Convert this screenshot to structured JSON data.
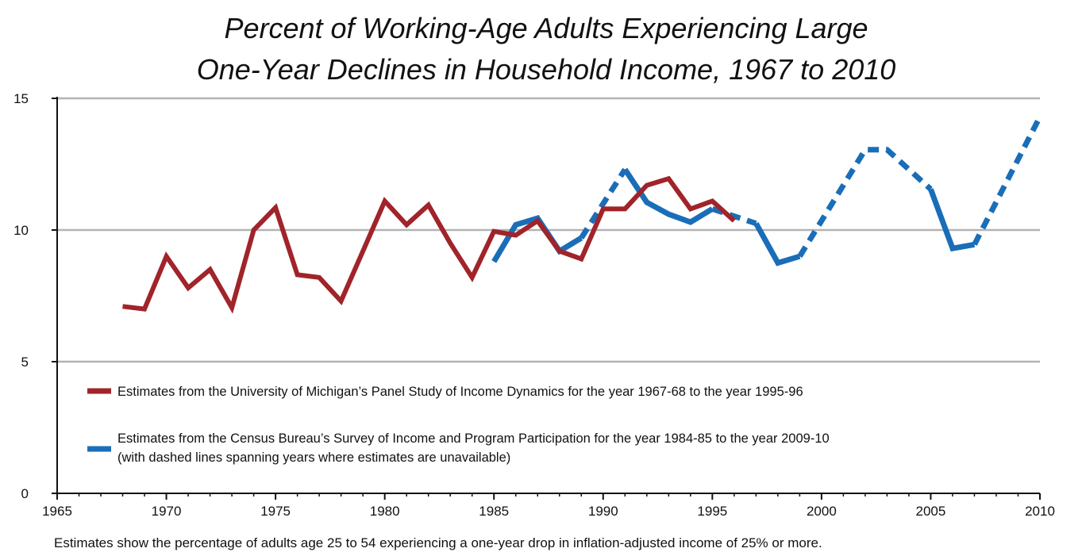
{
  "chart_data": {
    "type": "line",
    "title_lines": [
      "Percent of Working-Age Adults Experiencing Large",
      "One-Year Declines in Household Income, 1967 to 2010"
    ],
    "xlabel": "",
    "ylabel": "",
    "xlim": [
      1965,
      2010
    ],
    "ylim": [
      0,
      15
    ],
    "x_ticks": [
      "1965",
      "1970",
      "1975",
      "1980",
      "1985",
      "1990",
      "1995",
      "2000",
      "2005",
      "2010"
    ],
    "y_ticks": [
      "0",
      "5",
      "10",
      "15"
    ],
    "grid": "horizontal",
    "legend_position": "lower-left",
    "series": [
      {
        "name": "Estimates from the University of Michigan’s Panel Study of Income Dynamics for the year 1967-68 to the year 1995-96",
        "color": "#a0242a",
        "style": "solid",
        "points": [
          [
            1968,
            7.1
          ],
          [
            1969,
            7.0
          ],
          [
            1970,
            9.0
          ],
          [
            1971,
            7.8
          ],
          [
            1972,
            8.5
          ],
          [
            1973,
            7.05
          ],
          [
            1974,
            10.0
          ],
          [
            1975,
            10.85
          ],
          [
            1976,
            8.3
          ],
          [
            1977,
            8.2
          ],
          [
            1978,
            7.3
          ],
          [
            1979,
            9.2
          ],
          [
            1980,
            11.1
          ],
          [
            1981,
            10.2
          ],
          [
            1982,
            10.95
          ],
          [
            1983,
            9.5
          ],
          [
            1984,
            8.2
          ],
          [
            1985,
            9.95
          ],
          [
            1986,
            9.8
          ],
          [
            1987,
            10.35
          ],
          [
            1988,
            9.2
          ],
          [
            1989,
            8.9
          ],
          [
            1990,
            10.8
          ],
          [
            1991,
            10.8
          ],
          [
            1992,
            11.7
          ],
          [
            1993,
            11.95
          ],
          [
            1994,
            10.8
          ],
          [
            1995,
            11.1
          ],
          [
            1996,
            10.35
          ]
        ]
      },
      {
        "name": "Estimates from the Census Bureau’s Survey of Income and Program Participation for the year 1984-85 to the year 2009-10",
        "name_line2": "(with dashed lines spanning years where estimates are unavailable)",
        "color": "#1a6eb8",
        "segments": [
          {
            "style": "solid",
            "points": [
              [
                1985,
                8.8
              ],
              [
                1986,
                10.2
              ],
              [
                1987,
                10.45
              ],
              [
                1988,
                9.2
              ],
              [
                1989,
                9.7
              ]
            ]
          },
          {
            "style": "dashed",
            "points": [
              [
                1989,
                9.7
              ],
              [
                1991,
                12.3
              ]
            ]
          },
          {
            "style": "solid",
            "points": [
              [
                1991,
                12.3
              ],
              [
                1992,
                11.05
              ],
              [
                1993,
                10.6
              ],
              [
                1994,
                10.3
              ],
              [
                1995,
                10.8
              ]
            ]
          },
          {
            "style": "dashed",
            "points": [
              [
                1995,
                10.8
              ],
              [
                1997,
                10.25
              ]
            ]
          },
          {
            "style": "solid",
            "points": [
              [
                1997,
                10.25
              ],
              [
                1998,
                8.75
              ],
              [
                1999,
                9.0
              ]
            ]
          },
          {
            "style": "dashed",
            "points": [
              [
                1999,
                9.0
              ],
              [
                2002,
                13.05
              ],
              [
                2003,
                13.05
              ],
              [
                2005,
                11.55
              ]
            ]
          },
          {
            "style": "solid",
            "points": [
              [
                2005,
                11.55
              ],
              [
                2006,
                9.3
              ],
              [
                2007,
                9.45
              ]
            ]
          },
          {
            "style": "dashed",
            "points": [
              [
                2007,
                9.45
              ],
              [
                2010,
                14.3
              ]
            ]
          }
        ]
      }
    ],
    "footnote": "Estimates show the percentage of adults age 25 to 54 experiencing a one-year drop in inflation-adjusted income of 25% or more."
  }
}
